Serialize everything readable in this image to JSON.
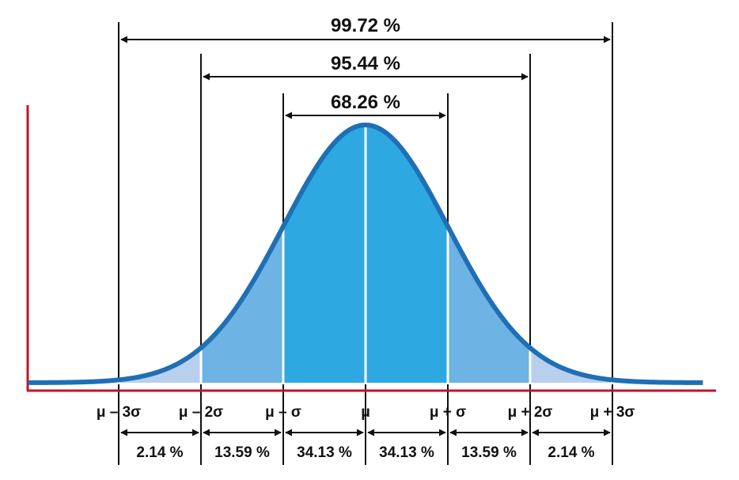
{
  "chart_data": {
    "type": "area",
    "distribution": "normal",
    "x_range_sigma": [
      -4.1,
      4.1
    ],
    "colors": {
      "curve": "#1F6FB5",
      "band_1sigma": "#2EA8E0",
      "band_2sigma": "#6DB3E3",
      "band_3sigma": "#B9CFEE",
      "axis": "#C0142A",
      "divider": "#FFFFFF",
      "reference_lines": "#111111"
    },
    "x_tick_labels": [
      {
        "sigma": -3,
        "label": "μ – 3σ"
      },
      {
        "sigma": -2,
        "label": "μ – 2σ"
      },
      {
        "sigma": -1,
        "label": "μ – σ"
      },
      {
        "sigma": 0,
        "label": "μ"
      },
      {
        "sigma": 1,
        "label": "μ + σ"
      },
      {
        "sigma": 2,
        "label": "μ + 2σ"
      },
      {
        "sigma": 3,
        "label": "μ + 3σ"
      }
    ],
    "band_percentages": [
      {
        "from_sigma": -3,
        "to_sigma": -2,
        "label": "2.14 %"
      },
      {
        "from_sigma": -2,
        "to_sigma": -1,
        "label": "13.59 %"
      },
      {
        "from_sigma": -1,
        "to_sigma": 0,
        "label": "34.13 %"
      },
      {
        "from_sigma": 0,
        "to_sigma": 1,
        "label": "34.13 %"
      },
      {
        "from_sigma": 1,
        "to_sigma": 2,
        "label": "13.59 %"
      },
      {
        "from_sigma": 2,
        "to_sigma": 3,
        "label": "2.14 %"
      }
    ],
    "interval_percentages": [
      {
        "sigma": 3,
        "label": "99.72 %"
      },
      {
        "sigma": 2,
        "label": "95.44 %"
      },
      {
        "sigma": 1,
        "label": "68.26 %"
      }
    ]
  }
}
